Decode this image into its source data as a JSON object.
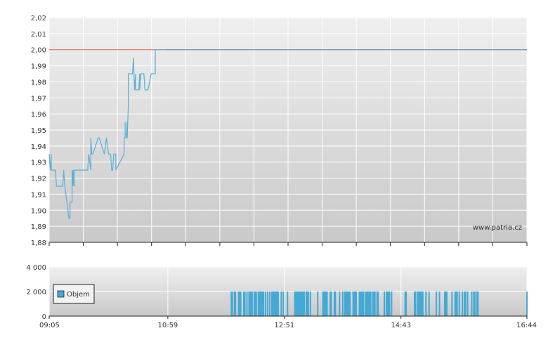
{
  "watermark": "www.patria.cz",
  "colors": {
    "price_line": "#5ab0d6",
    "reference_line": "#e85a4a",
    "reference_line_right": "#6e8fa6",
    "volume_bar": "#45a9d4",
    "grid": "#ffffff",
    "axis": "#222222"
  },
  "chart_data": [
    {
      "type": "line",
      "ylim": [
        1.88,
        2.02
      ],
      "yticks": [
        "2,02",
        "2,01",
        "2,00",
        "1,99",
        "1,98",
        "1,97",
        "1,96",
        "1,95",
        "1,94",
        "1,93",
        "1,92",
        "1,91",
        "1,90",
        "1,89",
        "1,88"
      ],
      "ytick_values": [
        2.02,
        2.01,
        2.0,
        1.99,
        1.98,
        1.97,
        1.96,
        1.95,
        1.94,
        1.93,
        1.92,
        1.91,
        1.9,
        1.89,
        1.88
      ],
      "xlim_minutes": [
        545,
        1004
      ],
      "grid": true,
      "reference_value": 2.0,
      "series": [
        {
          "x_minutes": [
            545,
            546,
            547,
            547,
            551,
            552,
            553,
            558,
            559,
            560,
            562,
            564,
            565,
            565,
            566,
            566,
            567,
            567,
            568,
            568,
            569,
            569,
            570,
            580,
            582,
            583,
            585,
            585,
            586,
            587,
            587,
            592,
            593,
            598,
            600,
            602,
            603,
            604,
            605,
            606,
            607,
            609,
            609,
            617,
            617,
            618,
            618,
            618,
            619,
            619,
            620,
            620,
            621,
            621,
            624,
            625,
            626,
            627,
            628,
            628,
            629,
            629,
            631,
            632,
            632,
            633,
            634,
            636,
            637,
            638,
            640,
            640,
            643,
            645,
            647,
            647,
            652,
            653,
            654,
            657,
            657
          ],
          "values": [
            1.935,
            1.925,
            1.935,
            1.925,
            1.925,
            1.915,
            1.915,
            1.915,
            1.925,
            1.915,
            1.905,
            1.895,
            1.895,
            1.905,
            1.905,
            1.905,
            1.905,
            1.925,
            1.915,
            1.925,
            1.915,
            1.925,
            1.925,
            1.925,
            1.925,
            1.935,
            1.925,
            1.945,
            1.935,
            1.935,
            1.935,
            1.945,
            1.945,
            1.935,
            1.945,
            1.935,
            1.935,
            1.935,
            1.925,
            1.925,
            1.935,
            1.935,
            1.925,
            1.935,
            1.945,
            1.945,
            1.955,
            1.945,
            1.945,
            1.945,
            1.955,
            1.945,
            1.965,
            1.985,
            1.985,
            1.985,
            1.995,
            1.975,
            1.985,
            1.975,
            1.975,
            1.975,
            1.975,
            1.985,
            1.975,
            1.985,
            1.985,
            1.985,
            1.975,
            1.975,
            1.975,
            1.975,
            1.985,
            1.985,
            1.985,
            2.0,
            2.0,
            2.0,
            2.0,
            2.0,
            2.0
          ]
        }
      ]
    },
    {
      "type": "bar",
      "ylim": [
        0,
        4000
      ],
      "yticks": [
        "4 000",
        "2 000",
        "0"
      ],
      "ytick_values": [
        4000,
        2000,
        0
      ],
      "xticks": [
        "09:05",
        "10:59",
        "12:51",
        "14:43",
        "16:44"
      ],
      "xtick_minutes": [
        545,
        659,
        771,
        883,
        1004
      ],
      "legend": "Objem",
      "legend_position": "left",
      "grid": true,
      "bar_value": 2000,
      "bar_minutes": [
        720,
        721,
        723,
        724,
        727,
        728,
        729,
        732,
        733,
        735,
        737,
        738,
        739,
        740,
        742,
        743,
        744,
        746,
        747,
        748,
        749,
        750,
        751,
        753,
        755,
        757,
        759,
        760,
        761,
        762,
        763,
        764,
        765,
        768,
        770,
        774,
        781,
        782,
        783,
        784,
        785,
        786,
        787,
        788,
        789,
        790,
        792,
        793,
        794,
        796,
        803,
        808,
        809,
        810,
        811,
        812,
        815,
        816,
        819,
        820,
        824,
        827,
        829,
        830,
        831,
        832,
        833,
        834,
        837,
        838,
        839,
        840,
        843,
        844,
        845,
        846,
        847,
        849,
        850,
        851,
        852,
        853,
        854,
        856,
        857,
        858,
        860,
        861,
        867,
        869,
        870,
        871,
        872,
        874,
        887,
        888,
        896,
        897,
        899,
        900,
        901,
        902,
        903,
        904,
        907,
        910,
        917,
        920,
        925,
        926,
        927,
        932,
        935,
        936,
        937,
        939,
        942,
        944,
        945,
        947,
        951,
        953,
        954,
        956,
        957,
        1004
      ]
    }
  ]
}
